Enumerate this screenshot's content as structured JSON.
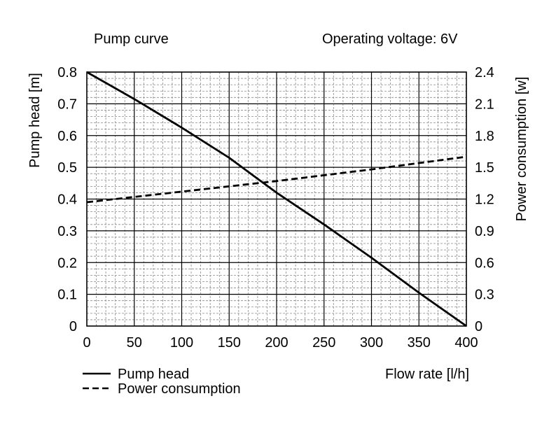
{
  "chart_data": {
    "type": "line",
    "title": "Pump curve",
    "subtitle": "Operating voltage: 6V",
    "xlabel": "Flow rate [l/h]",
    "ylabel": "Pump head [m]",
    "y2label": "Power consumption [w]",
    "xlim": [
      0,
      400
    ],
    "ylim": [
      0,
      0.8
    ],
    "y2lim": [
      0,
      2.4
    ],
    "xticks": [
      "0",
      "50",
      "100",
      "150",
      "200",
      "250",
      "300",
      "350",
      "400"
    ],
    "yticks": [
      "0",
      "0.1",
      "0.2",
      "0.3",
      "0.4",
      "0.5",
      "0.6",
      "0.7",
      "0.8"
    ],
    "y2ticks": [
      "0",
      "0.3",
      "0.6",
      "0.9",
      "1.2",
      "1.5",
      "1.8",
      "2.1",
      "2.4"
    ],
    "grid": true,
    "legend_position": "bottom-left",
    "series": [
      {
        "name": "Pump head",
        "axis": "left",
        "style": "solid",
        "x": [
          0,
          50,
          100,
          150,
          175,
          200,
          250,
          300,
          350,
          400
        ],
        "y": [
          0.8,
          0.715,
          0.625,
          0.53,
          0.475,
          0.42,
          0.32,
          0.215,
          0.105,
          0.0
        ]
      },
      {
        "name": "Power consumption",
        "axis": "right",
        "style": "dashed",
        "x": [
          0,
          100,
          200,
          300,
          400
        ],
        "y": [
          1.17,
          1.27,
          1.37,
          1.48,
          1.6
        ]
      }
    ]
  }
}
